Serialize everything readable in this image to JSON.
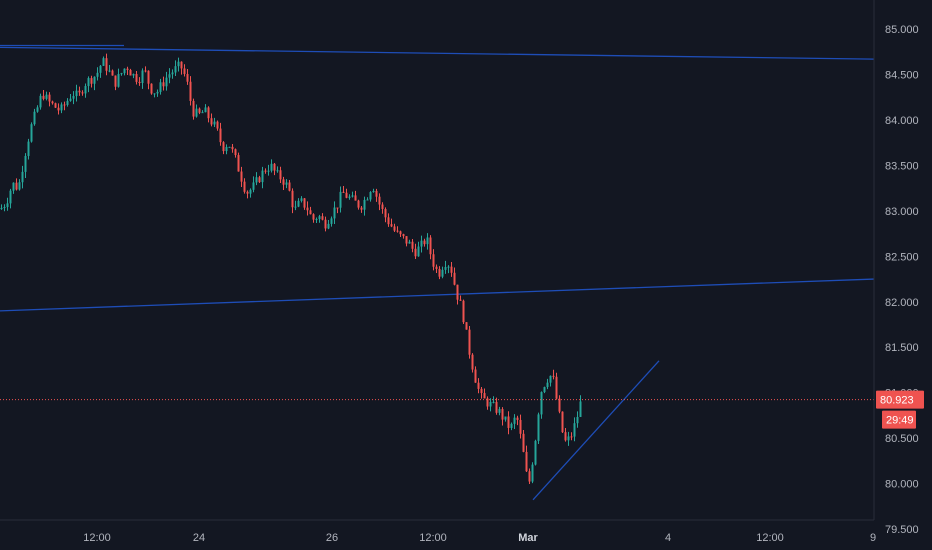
{
  "chart_data": {
    "type": "candlestick",
    "ylim": [
      79.4,
      85.2
    ],
    "y_ticks": [
      85.0,
      84.5,
      84.0,
      83.5,
      83.0,
      82.5,
      82.0,
      81.5,
      81.0,
      80.5,
      80.0,
      79.5
    ],
    "y_tick_labels": [
      "85.000",
      "84.500",
      "84.000",
      "83.500",
      "83.000",
      "82.500",
      "82.000",
      "81.500",
      "81.000",
      "80.500",
      "80.000",
      "79.500"
    ],
    "x_ticks": [
      {
        "label": "12:00",
        "bold": false
      },
      {
        "label": "24",
        "bold": false
      },
      {
        "label": "26",
        "bold": false
      },
      {
        "label": "12:00",
        "bold": false
      },
      {
        "label": "Mar",
        "bold": true
      },
      {
        "label": "4",
        "bold": false
      },
      {
        "label": "12:00",
        "bold": false
      },
      {
        "label": "9",
        "bold": false
      }
    ],
    "price_path": [
      [
        0,
        83.02
      ],
      [
        6,
        83.1
      ],
      [
        12,
        83.3
      ],
      [
        18,
        83.25
      ],
      [
        24,
        83.6
      ],
      [
        30,
        83.9
      ],
      [
        36,
        84.1
      ],
      [
        42,
        84.3
      ],
      [
        48,
        84.2
      ],
      [
        54,
        84.15
      ],
      [
        60,
        84.1
      ],
      [
        66,
        84.2
      ],
      [
        72,
        84.3
      ],
      [
        78,
        84.25
      ],
      [
        84,
        84.4
      ],
      [
        90,
        84.45
      ],
      [
        96,
        84.5
      ],
      [
        102,
        84.65
      ],
      [
        108,
        84.55
      ],
      [
        114,
        84.4
      ],
      [
        120,
        84.5
      ],
      [
        126,
        84.6
      ],
      [
        132,
        84.5
      ],
      [
        138,
        84.45
      ],
      [
        144,
        84.55
      ],
      [
        150,
        84.35
      ],
      [
        156,
        84.3
      ],
      [
        162,
        84.4
      ],
      [
        168,
        84.5
      ],
      [
        174,
        84.55
      ],
      [
        180,
        84.6
      ],
      [
        186,
        84.45
      ],
      [
        192,
        84.1
      ],
      [
        198,
        84.05
      ],
      [
        204,
        84.1
      ],
      [
        210,
        84.0
      ],
      [
        216,
        83.9
      ],
      [
        222,
        83.7
      ],
      [
        228,
        83.75
      ],
      [
        234,
        83.6
      ],
      [
        240,
        83.4
      ],
      [
        246,
        83.2
      ],
      [
        252,
        83.25
      ],
      [
        258,
        83.35
      ],
      [
        264,
        83.45
      ],
      [
        270,
        83.5
      ],
      [
        276,
        83.4
      ],
      [
        282,
        83.35
      ],
      [
        288,
        83.25
      ],
      [
        294,
        83.0
      ],
      [
        300,
        83.1
      ],
      [
        306,
        83.05
      ],
      [
        312,
        82.9
      ],
      [
        318,
        82.95
      ],
      [
        324,
        82.85
      ],
      [
        330,
        82.95
      ],
      [
        336,
        83.05
      ],
      [
        342,
        83.2
      ],
      [
        348,
        83.15
      ],
      [
        354,
        83.1
      ],
      [
        360,
        83.05
      ],
      [
        366,
        83.15
      ],
      [
        372,
        83.3
      ],
      [
        378,
        83.1
      ],
      [
        384,
        82.95
      ],
      [
        390,
        82.85
      ],
      [
        396,
        82.75
      ],
      [
        402,
        82.7
      ],
      [
        408,
        82.65
      ],
      [
        414,
        82.55
      ],
      [
        420,
        82.6
      ],
      [
        426,
        82.7
      ],
      [
        432,
        82.45
      ],
      [
        438,
        82.3
      ],
      [
        444,
        82.45
      ],
      [
        450,
        82.4
      ],
      [
        456,
        82.1
      ],
      [
        462,
        81.9
      ],
      [
        468,
        81.5
      ],
      [
        474,
        81.2
      ],
      [
        480,
        80.95
      ],
      [
        486,
        80.9
      ],
      [
        492,
        80.85
      ],
      [
        498,
        80.8
      ],
      [
        504,
        80.7
      ],
      [
        510,
        80.6
      ],
      [
        516,
        80.75
      ],
      [
        522,
        80.4
      ],
      [
        528,
        79.95
      ],
      [
        534,
        80.4
      ],
      [
        540,
        81.0
      ],
      [
        546,
        81.15
      ],
      [
        552,
        81.2
      ],
      [
        558,
        80.8
      ],
      [
        564,
        80.45
      ],
      [
        570,
        80.5
      ],
      [
        576,
        80.7
      ],
      [
        581,
        80.923
      ]
    ],
    "trendlines": [
      {
        "from": [
          0,
          84.82
        ],
        "to": [
          124,
          84.82
        ]
      },
      {
        "from": [
          0,
          84.8
        ],
        "to": [
          874,
          84.67
        ]
      },
      {
        "from": [
          0,
          81.9
        ],
        "to": [
          874,
          82.25
        ]
      },
      {
        "from": [
          533,
          79.82
        ],
        "to": [
          659,
          81.35
        ]
      }
    ],
    "current_price": 80.923,
    "current_price_label": "80.923",
    "countdown_label": "29:49"
  },
  "colors": {
    "background": "#131722",
    "up": "#26a69a",
    "down": "#ef5350",
    "trendline": "#1e4db7",
    "price_line": "#ef5350",
    "axis_text": "#b2b5be"
  }
}
